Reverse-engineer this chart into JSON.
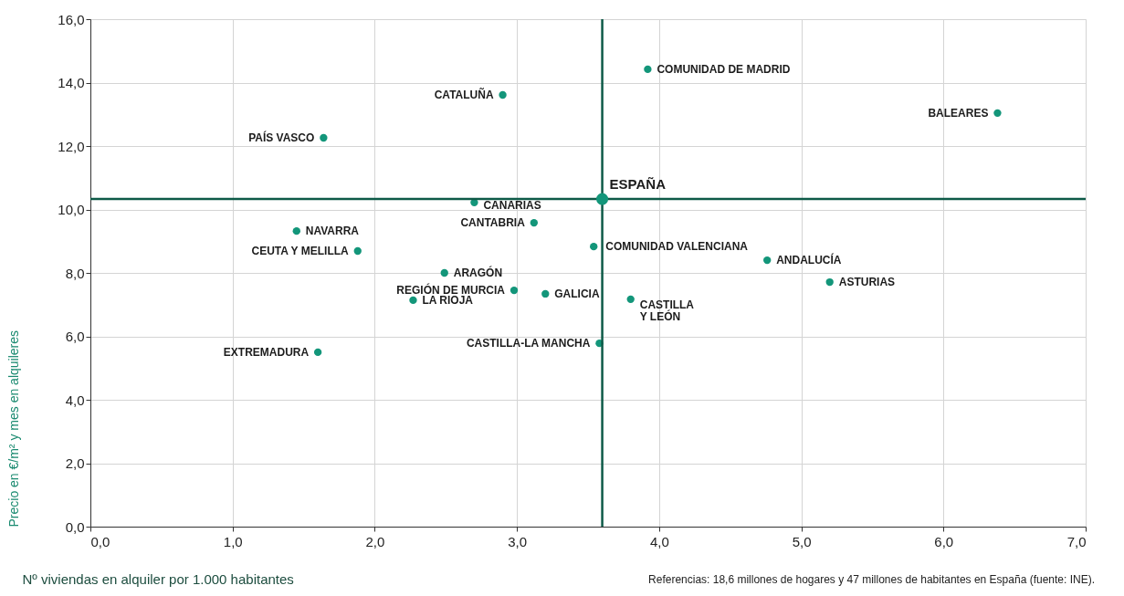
{
  "chart_data": {
    "type": "scatter",
    "xlabel": "Nº viviendas en alquiler por 1.000 habitantes",
    "ylabel": "Precio en €/m² y mes en alquileres",
    "series": [
      {
        "color": "#13967a",
        "x": [
          3.92,
          2.9,
          6.38,
          1.64,
          2.7,
          3.12,
          1.45,
          1.88,
          3.54,
          4.76,
          2.49,
          5.2,
          2.98,
          3.2,
          2.27,
          3.8,
          3.58,
          1.6
        ],
        "values": [
          14.42,
          13.61,
          13.04,
          12.26,
          10.22,
          9.58,
          9.32,
          8.69,
          8.83,
          8.4,
          8.0,
          7.71,
          7.45,
          7.34,
          7.14,
          7.17,
          5.78,
          5.5
        ]
      },
      {
        "color": "#13967a",
        "x": [
          3.6
        ],
        "values": [
          10.33
        ]
      }
    ],
    "xlim": [
      0,
      7
    ],
    "ylim": [
      0,
      16
    ],
    "xticks": [
      {
        "value": 0,
        "label": "0,0"
      },
      {
        "value": 1,
        "label": "1,0"
      },
      {
        "value": 2,
        "label": "2,0"
      },
      {
        "value": 3,
        "label": "3,0"
      },
      {
        "value": 4,
        "label": "4,0"
      },
      {
        "value": 5,
        "label": "5,0"
      },
      {
        "value": 6,
        "label": "6,0"
      },
      {
        "value": 7,
        "label": "7,0"
      }
    ],
    "yticks": [
      {
        "value": 0,
        "label": "0,0"
      },
      {
        "value": 2,
        "label": "2,0"
      },
      {
        "value": 4,
        "label": "4,0"
      },
      {
        "value": 6,
        "label": "6,0"
      },
      {
        "value": 8,
        "label": "8,0"
      },
      {
        "value": 10,
        "label": "10,0"
      },
      {
        "value": 12,
        "label": "12,0"
      },
      {
        "value": 14,
        "label": "14,0"
      },
      {
        "value": 16,
        "label": "16,0"
      }
    ],
    "ref_lines": [
      {
        "axis": "x",
        "value": 3.6,
        "color": "#0d5a47"
      },
      {
        "axis": "y",
        "value": 10.33,
        "color": "#0d5a47"
      }
    ],
    "grid": true,
    "marker": "circle",
    "annotations": [
      {
        "text": "COMUNIDAD DE MADRID",
        "x": 3.92,
        "y": 14.42
      },
      {
        "text": "CATALUÑA",
        "x": 2.9,
        "y": 13.61
      },
      {
        "text": "BALEARES",
        "x": 6.38,
        "y": 13.04
      },
      {
        "text": "PAÍS VASCO",
        "x": 1.64,
        "y": 12.26
      },
      {
        "text": "CANARIAS",
        "x": 2.7,
        "y": 10.22
      },
      {
        "text": "CANTABRIA",
        "x": 3.12,
        "y": 9.58
      },
      {
        "text": "NAVARRA",
        "x": 1.45,
        "y": 9.32
      },
      {
        "text": "CEUTA Y MELILLA",
        "x": 1.88,
        "y": 8.69
      },
      {
        "text": "COMUNIDAD VALENCIANA",
        "x": 3.54,
        "y": 8.83
      },
      {
        "text": "ANDALUCÍA",
        "x": 4.76,
        "y": 8.4
      },
      {
        "text": "ARAGÓN",
        "x": 2.49,
        "y": 8.0
      },
      {
        "text": "ASTURIAS",
        "x": 5.2,
        "y": 7.71
      },
      {
        "text": "REGIÓN DE MURCIA",
        "x": 2.98,
        "y": 7.45
      },
      {
        "text": "GALICIA",
        "x": 3.2,
        "y": 7.34
      },
      {
        "text": "LA RIOJA",
        "x": 2.27,
        "y": 7.14
      },
      {
        "text": "CASTILLA\nY LEÓN",
        "x": 3.8,
        "y": 7.17
      },
      {
        "text": "CASTILLA-LA MANCHA",
        "x": 3.58,
        "y": 5.78
      },
      {
        "text": "EXTREMADURA",
        "x": 1.6,
        "y": 5.5
      },
      {
        "text": "ESPAÑA",
        "x": 3.6,
        "y": 10.33
      },
      "Referencias: 18,6 millones de hogares y 47 millones de habitantes en España (fuente: INE)."
    ]
  }
}
